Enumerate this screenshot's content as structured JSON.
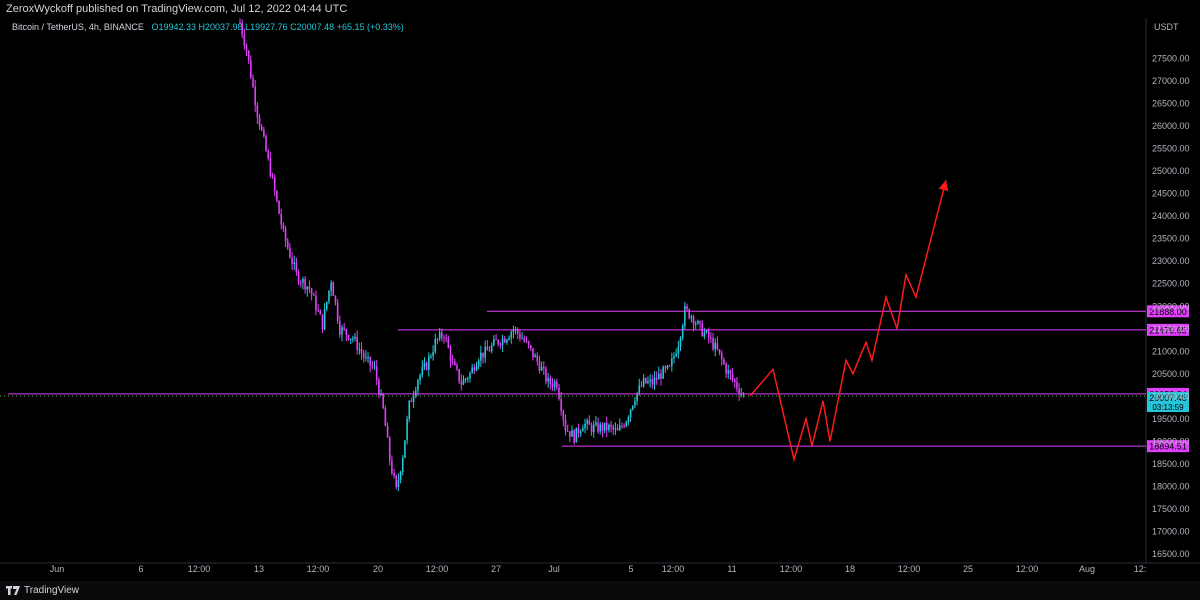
{
  "header": {
    "published": "ZeroxWyckoff published on TradingView.com, Jul 12, 2022 04:44 UTC"
  },
  "symbol": {
    "title": "Bitcoin / TetherUS, 4h, BINANCE",
    "o": "O19942.33",
    "h": "H20037.98",
    "l": "L19927.76",
    "c": "C20007.48",
    "change": "+65.15 (+0.33%)"
  },
  "footer": {
    "brand": "TradingView"
  },
  "colors": {
    "candle_up": "#26c6da",
    "candle_down": "#e040fb",
    "level_line": "#e040fb",
    "projection": "#ff1a1a",
    "bg": "#000000",
    "axis_text": "#b2b5be"
  },
  "chart_data": {
    "type": "candlestick",
    "title": "Bitcoin / TetherUS, 4h, BINANCE",
    "price_unit": "USDT",
    "ylim": [
      16300,
      28400
    ],
    "y_ticks": [
      16500,
      17000,
      17500,
      18000,
      18500,
      19000,
      19500,
      20000,
      20500,
      21000,
      21500,
      22000,
      22500,
      23000,
      23500,
      24000,
      24500,
      25000,
      25500,
      26000,
      26500,
      27000,
      27500
    ],
    "x_ticks": [
      "Jun",
      "6",
      "12:00",
      "13",
      "12:00",
      "20",
      "12:00",
      "27",
      "Jul",
      "5",
      "12:00",
      "11",
      "12:00",
      "18",
      "12:00",
      "25",
      "12:00",
      "Aug",
      "12:"
    ],
    "price_path": [
      [
        0,
        28300
      ],
      [
        3,
        27700
      ],
      [
        8,
        26300
      ],
      [
        14,
        25000
      ],
      [
        20,
        23600
      ],
      [
        26,
        22700
      ],
      [
        32,
        22400
      ],
      [
        38,
        21600
      ],
      [
        42,
        22600
      ],
      [
        46,
        21500
      ],
      [
        52,
        21300
      ],
      [
        58,
        20800
      ],
      [
        62,
        20600
      ],
      [
        66,
        19700
      ],
      [
        69,
        18600
      ],
      [
        72,
        17900
      ],
      [
        75,
        18700
      ],
      [
        78,
        19800
      ],
      [
        82,
        20400
      ],
      [
        86,
        20700
      ],
      [
        90,
        21200
      ],
      [
        94,
        21400
      ],
      [
        98,
        20700
      ],
      [
        102,
        20300
      ],
      [
        106,
        20500
      ],
      [
        110,
        20900
      ],
      [
        114,
        21000
      ],
      [
        118,
        21200
      ],
      [
        122,
        21300
      ],
      [
        126,
        21500
      ],
      [
        130,
        21300
      ],
      [
        134,
        21000
      ],
      [
        138,
        20700
      ],
      [
        142,
        20300
      ],
      [
        146,
        20300
      ],
      [
        150,
        19300
      ],
      [
        154,
        19100
      ],
      [
        158,
        19400
      ],
      [
        162,
        19300
      ],
      [
        166,
        19300
      ],
      [
        170,
        19300
      ],
      [
        174,
        19200
      ],
      [
        178,
        19500
      ],
      [
        182,
        20000
      ],
      [
        186,
        20300
      ],
      [
        190,
        20300
      ],
      [
        194,
        20500
      ],
      [
        198,
        20600
      ],
      [
        202,
        21200
      ],
      [
        205,
        21900
      ],
      [
        208,
        21800
      ],
      [
        212,
        21500
      ],
      [
        216,
        21300
      ],
      [
        220,
        21000
      ],
      [
        224,
        20600
      ],
      [
        228,
        20300
      ],
      [
        232,
        20007
      ]
    ],
    "levels": [
      {
        "label": "21888.00",
        "value": 21888
      },
      {
        "label": "21476.65",
        "value": 21476.65
      },
      {
        "label": "20053.84",
        "value": 20053.84
      },
      {
        "label": "18894.51",
        "value": 18894.51
      }
    ],
    "last_price": {
      "value": "20007.48",
      "countdown": "03:13:59"
    },
    "projection_path": [
      [
        0,
        20007
      ],
      [
        1,
        20600
      ],
      [
        2,
        18600
      ],
      [
        3,
        19500
      ],
      [
        4,
        18900
      ],
      [
        5,
        19900
      ],
      [
        6,
        19000
      ],
      [
        7,
        20800
      ],
      [
        8,
        20500
      ],
      [
        9,
        21200
      ],
      [
        10,
        20800
      ],
      [
        11,
        22200
      ],
      [
        12,
        21500
      ],
      [
        13,
        22700
      ],
      [
        14,
        22200
      ],
      [
        15,
        24800
      ]
    ]
  }
}
